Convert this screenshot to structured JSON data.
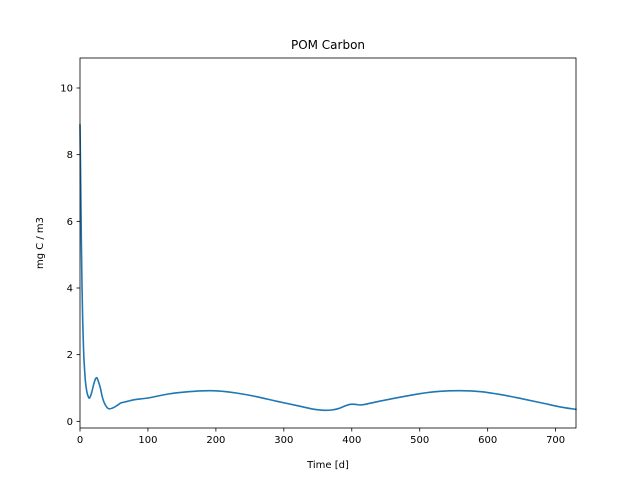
{
  "chart_data": {
    "type": "line",
    "title": "POM Carbon",
    "xlabel": "Time [d]",
    "ylabel": "mg C / m3",
    "xlim": [
      0,
      730
    ],
    "ylim": [
      -0.2,
      10.9
    ],
    "x_ticks": [
      0,
      100,
      200,
      300,
      400,
      500,
      600,
      700
    ],
    "y_ticks": [
      0,
      2,
      4,
      6,
      8,
      10
    ],
    "grid": false,
    "legend": "none",
    "series": [
      {
        "color": "#1f77b4",
        "x": [
          0,
          1,
          2,
          3,
          4,
          5,
          6,
          8,
          10,
          12,
          14,
          17,
          20,
          23,
          25,
          27,
          30,
          33,
          37,
          42,
          48,
          55,
          60,
          70,
          80,
          100,
          130,
          160,
          190,
          210,
          230,
          260,
          290,
          320,
          345,
          360,
          370,
          380,
          390,
          398,
          405,
          412,
          420,
          440,
          470,
          500,
          530,
          560,
          590,
          620,
          650,
          680,
          710,
          730
        ],
        "y": [
          8.9,
          7.2,
          5.4,
          4.0,
          3.0,
          2.3,
          1.8,
          1.2,
          0.9,
          0.75,
          0.7,
          0.85,
          1.1,
          1.28,
          1.3,
          1.2,
          1.0,
          0.72,
          0.5,
          0.38,
          0.4,
          0.48,
          0.55,
          0.6,
          0.65,
          0.7,
          0.82,
          0.89,
          0.92,
          0.9,
          0.85,
          0.74,
          0.6,
          0.47,
          0.36,
          0.33,
          0.34,
          0.38,
          0.46,
          0.51,
          0.51,
          0.49,
          0.51,
          0.6,
          0.72,
          0.83,
          0.9,
          0.92,
          0.89,
          0.8,
          0.68,
          0.55,
          0.42,
          0.36
        ]
      }
    ]
  }
}
